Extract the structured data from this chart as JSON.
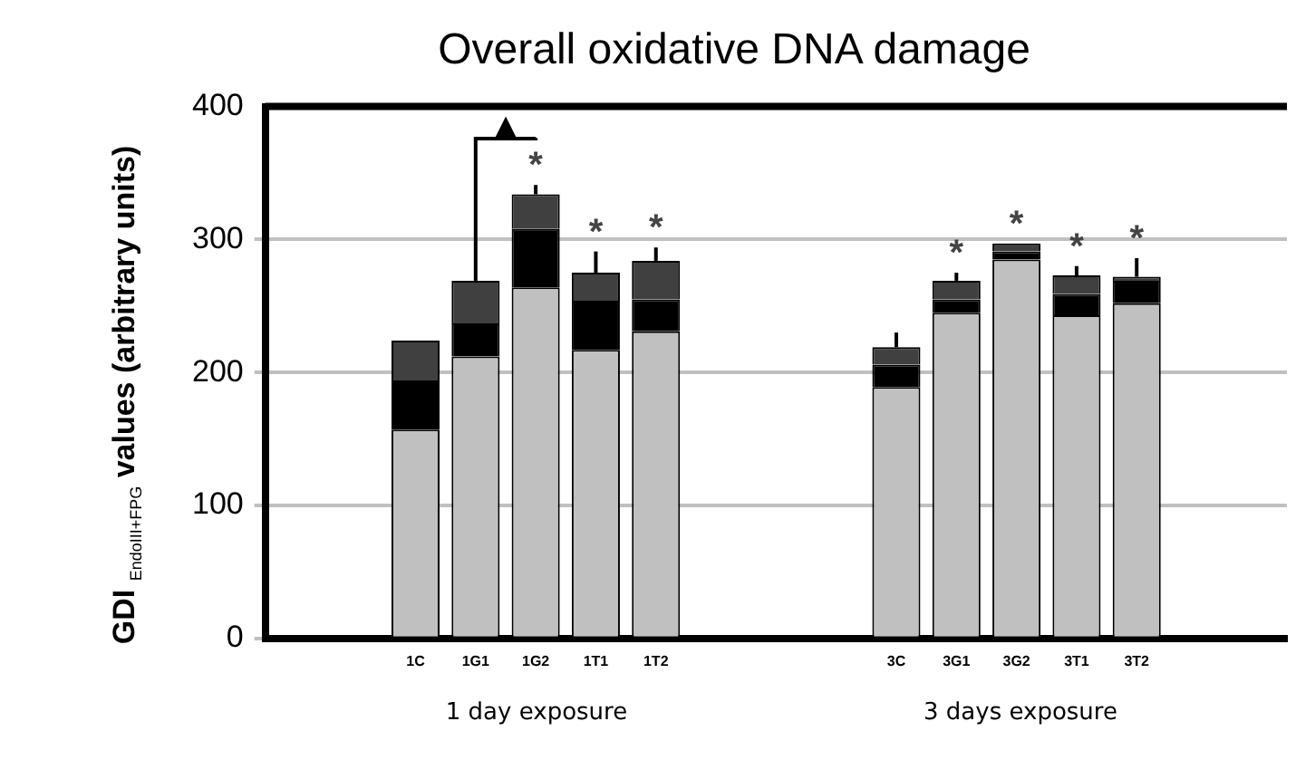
{
  "chart_data": {
    "type": "bar",
    "title": "Overall oxidative DNA damage",
    "ylabel": "GDI $_{EndoIII+FPG}$ values (arbitrary units)",
    "categories": [
      null,
      null,
      "1C",
      "1G1",
      "1G2",
      "1T1",
      "1T2",
      null,
      null,
      null,
      "3C",
      "3G1",
      "3G2",
      "3T1",
      "3T2",
      null,
      null
    ],
    "stacked": true,
    "series": [
      {
        "color": "#c0c0c0",
        "values": [
          null,
          null,
          157,
          212,
          264,
          217,
          231,
          null,
          null,
          null,
          189,
          245,
          285,
          243,
          252,
          null,
          null
        ]
      },
      {
        "color": "#000000",
        "values": [
          null,
          null,
          37,
          25,
          44,
          37,
          24,
          null,
          null,
          null,
          17,
          10,
          6,
          16,
          17,
          null,
          null
        ]
      },
      {
        "color": "#404040",
        "values": [
          null,
          null,
          30,
          32,
          26,
          21,
          29,
          null,
          null,
          null,
          13,
          14,
          6,
          14,
          3,
          null,
          null
        ],
        "errors": [
          null,
          null,
          null,
          [
            269,
            286
          ],
          [
            334,
            341
          ],
          [
            275,
            291
          ],
          [
            284,
            294
          ],
          null,
          null,
          null,
          [
            219,
            230
          ],
          [
            269,
            275
          ],
          null,
          [
            273,
            280
          ],
          [
            272,
            286
          ],
          null,
          null
        ]
      }
    ],
    "ylim": [
      0,
      400
    ],
    "yticks": [
      0,
      100,
      200,
      300,
      400
    ],
    "grid": "y",
    "legend": false,
    "annotations": [
      {
        "text": "*",
        "x": "1G2",
        "y": 334
      },
      {
        "text": "*",
        "x": "1T1",
        "y": 275
      },
      {
        "text": "*",
        "x": "1T2",
        "y": 284
      },
      {
        "text": "*",
        "x": "3G1",
        "y": 269
      },
      {
        "text": "*",
        "x": "3G2",
        "y": 297
      },
      {
        "text": "*",
        "x": "3T1",
        "y": 273
      },
      {
        "text": "*",
        "x": "3T2",
        "y": 272
      },
      {
        "text": "▲",
        "x": "1G1",
        "y": 286
      },
      "1 day exposure",
      "3 days exposure"
    ]
  }
}
